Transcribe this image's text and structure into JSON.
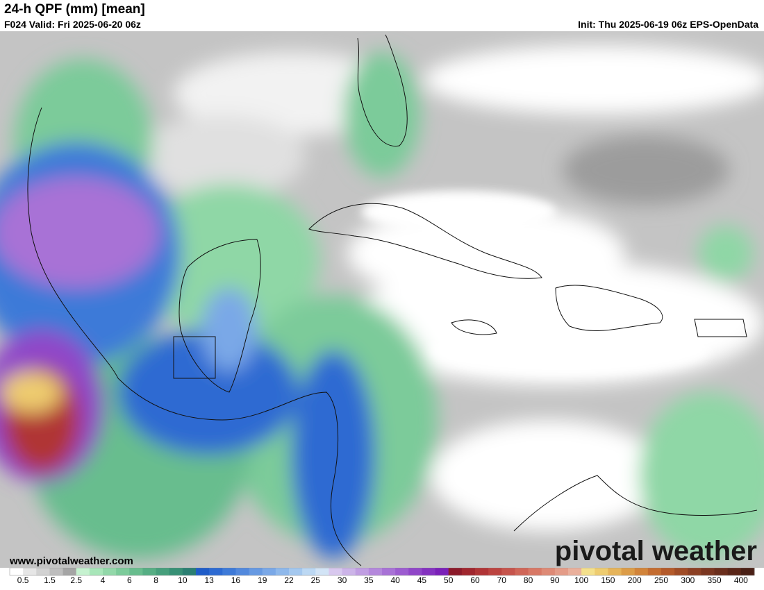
{
  "header": {
    "title": "24-h QPF (mm) [mean]",
    "valid": "F024 Valid: Fri 2025-06-20 06z",
    "init": "Init: Thu 2025-06-19 06z EPS-OpenData"
  },
  "watermark": {
    "url": "www.pivotalweather.com",
    "logo": "pivotal weather"
  },
  "colorbar": {
    "labels": [
      "0.5",
      "1.5",
      "2.5",
      "4",
      "6",
      "8",
      "10",
      "13",
      "16",
      "19",
      "22",
      "25",
      "30",
      "35",
      "40",
      "45",
      "50",
      "60",
      "70",
      "80",
      "90",
      "100",
      "150",
      "200",
      "250",
      "300",
      "350",
      "400"
    ],
    "colors": [
      "#ffffff",
      "#e6e6e6",
      "#d2d2d2",
      "#bebebe",
      "#a5a5a5",
      "#c6f2d0",
      "#a8e6b9",
      "#92d8a9",
      "#7ccb9a",
      "#68bd8e",
      "#56ae84",
      "#469f7c",
      "#379075",
      "#2b7f72",
      "#1f5cc8",
      "#2d6ad2",
      "#3e7ad8",
      "#5289dd",
      "#6699e2",
      "#7aa8e7",
      "#8eb8eb",
      "#a4c8ef",
      "#bcd8f3",
      "#d2e4f6",
      "#d8c8ee",
      "#ccb4e8",
      "#c09ee2",
      "#b488dc",
      "#a872d6",
      "#9c5cd0",
      "#9046c8",
      "#8432c0",
      "#7a20b8",
      "#8c1a2a",
      "#a0262e",
      "#b03436",
      "#bc4440",
      "#c6544c",
      "#d06658",
      "#d87866",
      "#de8a76",
      "#e49c88",
      "#eab09c",
      "#f4e08c",
      "#eecc70",
      "#e6b45a",
      "#dc9c48",
      "#d2843a",
      "#c46c30",
      "#b45a2a",
      "#a04c26",
      "#8c4024",
      "#7a3620",
      "#6a2e1c",
      "#5a2618",
      "#4a2016"
    ]
  }
}
